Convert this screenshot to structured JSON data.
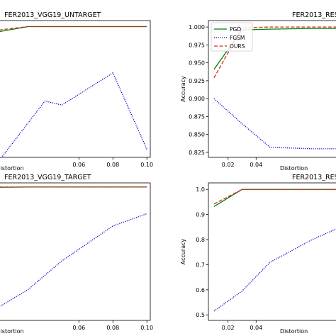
{
  "chart_data": [
    {
      "type": "line",
      "title": "FER2013_VGG19_UNTARGET",
      "xlabel": "Distortion",
      "ylabel": "",
      "xlim": [
        0.0094,
        0.102
      ],
      "ylim": [
        0.935,
        1.003
      ],
      "xticks": [
        "0.06",
        "0.08",
        "0.10"
      ],
      "yticks": [],
      "legend": null,
      "series": [
        {
          "key": "pgd",
          "color": "#008000",
          "dash": "solid",
          "x": [
            0.01,
            0.03,
            0.05,
            0.08,
            0.1
          ],
          "y": [
            0.997,
            1.0,
            1.0,
            1.0,
            1.0
          ]
        },
        {
          "key": "ours",
          "color": "#d62728",
          "dash": "dashed",
          "x": [
            0.01,
            0.03,
            0.05,
            0.08,
            0.1
          ],
          "y": [
            0.998,
            1.0,
            1.0,
            1.0,
            1.0
          ]
        },
        {
          "key": "fgsm",
          "color": "#0000cc",
          "dash": "dotted",
          "x": [
            0.01,
            0.04,
            0.05,
            0.08,
            0.1
          ],
          "y": [
            0.93,
            0.963,
            0.961,
            0.977,
            0.939
          ]
        }
      ]
    },
    {
      "type": "line",
      "title": "FER2013_RESNET18_UNTARGET",
      "xlabel": "Distortion",
      "ylabel": "Accuracy",
      "xlim": [
        0.006,
        0.102
      ],
      "ylim": [
        0.818,
        1.009
      ],
      "xticks": [
        "0.02",
        "0.04"
      ],
      "yticks": [
        "1.000",
        "0.975",
        "0.950",
        "0.925",
        "0.900",
        "0.875",
        "0.850",
        "0.825"
      ],
      "legend": {
        "position": "top-left",
        "entries": [
          "PGD",
          "FGSM",
          "OURS"
        ]
      },
      "series": [
        {
          "name": "PGD",
          "color": "#008000",
          "dash": "solid",
          "x": [
            0.01,
            0.03,
            0.05,
            0.08,
            0.1
          ],
          "y": [
            0.941,
            0.996,
            0.997,
            0.998,
            0.998
          ]
        },
        {
          "name": "FGSM",
          "color": "#0000cc",
          "dash": "dotted",
          "x": [
            0.01,
            0.03,
            0.05,
            0.08,
            0.1
          ],
          "y": [
            0.9,
            0.865,
            0.832,
            0.83,
            0.83
          ]
        },
        {
          "name": "OURS",
          "color": "#d62728",
          "dash": "dashed",
          "x": [
            0.01,
            0.03,
            0.05,
            0.08,
            0.1
          ],
          "y": [
            0.929,
            0.999,
            1.0,
            1.0,
            1.0
          ]
        }
      ]
    },
    {
      "type": "line",
      "title": "FER2013_VGG19_TARGET",
      "xlabel": "Distortion",
      "ylabel": "",
      "xlim": [
        0.0094,
        0.102
      ],
      "ylim": [
        0.35,
        1.02
      ],
      "xticks": [
        "0.06",
        "0.08",
        "0.10"
      ],
      "yticks": [],
      "legend": null,
      "series": [
        {
          "key": "pgd",
          "color": "#008000",
          "dash": "solid",
          "x": [
            0.01,
            0.03,
            0.05,
            0.08,
            0.1
          ],
          "y": [
            0.998,
            1.0,
            1.0,
            1.0,
            1.0
          ]
        },
        {
          "key": "ours",
          "color": "#d62728",
          "dash": "dashed",
          "x": [
            0.01,
            0.03,
            0.05,
            0.08,
            0.1
          ],
          "y": [
            1.0,
            1.0,
            1.0,
            1.0,
            1.0
          ]
        },
        {
          "key": "fgsm",
          "color": "#0000cc",
          "dash": "dotted",
          "x": [
            0.01,
            0.03,
            0.05,
            0.08,
            0.1
          ],
          "y": [
            0.4,
            0.5,
            0.64,
            0.81,
            0.87
          ]
        }
      ]
    },
    {
      "type": "line",
      "title": "FER2013_RESNET18_TARGET",
      "xlabel": "Distortion",
      "ylabel": "Accuracy",
      "xlim": [
        0.006,
        0.102
      ],
      "ylim": [
        0.478,
        1.026
      ],
      "xticks": [
        "0.02",
        "0.04"
      ],
      "yticks": [
        "1.0",
        "0.9",
        "0.8",
        "0.7",
        "0.6",
        "0.5"
      ],
      "legend": null,
      "series": [
        {
          "key": "pgd",
          "color": "#008000",
          "dash": "solid",
          "x": [
            0.01,
            0.03,
            0.05,
            0.08,
            0.1
          ],
          "y": [
            0.932,
            1.0,
            1.0,
            1.0,
            1.0
          ]
        },
        {
          "key": "ours",
          "color": "#d62728",
          "dash": "dashed",
          "x": [
            0.01,
            0.03,
            0.05,
            0.08,
            0.1
          ],
          "y": [
            0.942,
            1.0,
            1.0,
            1.0,
            1.0
          ]
        },
        {
          "key": "fgsm",
          "color": "#0000cc",
          "dash": "dotted",
          "x": [
            0.01,
            0.03,
            0.05,
            0.08,
            0.1
          ],
          "y": [
            0.515,
            0.595,
            0.71,
            0.8,
            0.85
          ]
        }
      ]
    }
  ]
}
